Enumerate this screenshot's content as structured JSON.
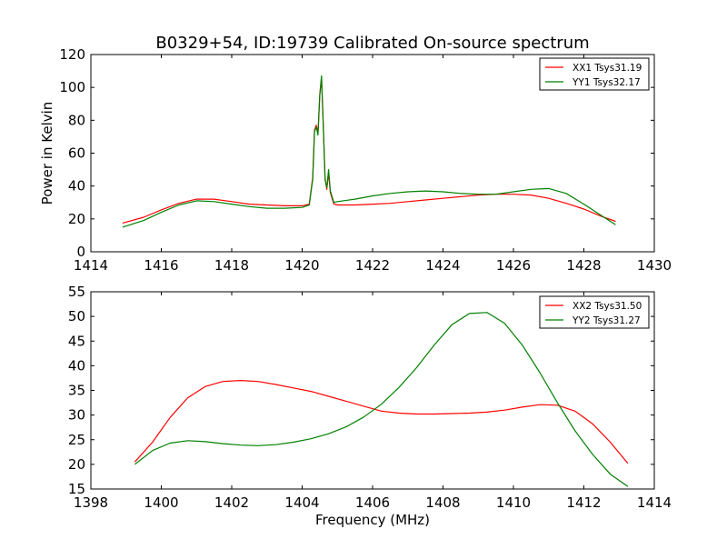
{
  "title": "B0329+54, ID:19739 Calibrated On-source spectrum",
  "chart_data": [
    {
      "type": "line",
      "title": "B0329+54, ID:19739 Calibrated On-source spectrum",
      "xlabel": "",
      "ylabel": "Power in Kelvin",
      "xlim": [
        1414,
        1430
      ],
      "ylim": [
        0,
        120
      ],
      "xticks": [
        "1414",
        "1416",
        "1418",
        "1420",
        "1422",
        "1424",
        "1426",
        "1428",
        "1430"
      ],
      "yticks": [
        "0",
        "20",
        "40",
        "60",
        "80",
        "100",
        "120"
      ],
      "grid": false,
      "legend_position": "top-right",
      "series": [
        {
          "name": "XX1 Tsys31.19",
          "color": "#ff0000",
          "x": [
            1414.9,
            1415.5,
            1416.0,
            1416.5,
            1417.0,
            1417.5,
            1418.0,
            1418.5,
            1419.0,
            1419.5,
            1420.0,
            1420.2,
            1420.3,
            1420.35,
            1420.4,
            1420.45,
            1420.5,
            1420.55,
            1420.6,
            1420.65,
            1420.7,
            1420.75,
            1420.8,
            1420.9,
            1421.0,
            1421.5,
            1422.0,
            1422.5,
            1423.0,
            1423.5,
            1424.0,
            1424.5,
            1425.0,
            1425.5,
            1426.0,
            1426.5,
            1427.0,
            1427.5,
            1428.0,
            1428.5,
            1428.9
          ],
          "y": [
            17.5,
            21,
            25.5,
            29.5,
            32,
            32,
            30.5,
            29,
            28.5,
            28,
            28,
            29,
            45,
            74,
            77,
            72,
            96,
            106,
            78,
            45,
            38,
            48,
            36,
            29,
            28.5,
            28.5,
            29,
            29.5,
            30.5,
            31.5,
            32.5,
            33.5,
            34.5,
            35,
            35,
            34.5,
            32.5,
            29.5,
            26,
            21.5,
            18.5
          ]
        },
        {
          "name": "YY1 Tsys32.17",
          "color": "#008000",
          "x": [
            1414.9,
            1415.5,
            1416.0,
            1416.5,
            1417.0,
            1417.5,
            1418.0,
            1418.5,
            1419.0,
            1419.5,
            1420.0,
            1420.2,
            1420.3,
            1420.35,
            1420.4,
            1420.45,
            1420.5,
            1420.55,
            1420.6,
            1420.65,
            1420.7,
            1420.75,
            1420.8,
            1420.9,
            1421.0,
            1421.5,
            1422.0,
            1422.5,
            1423.0,
            1423.5,
            1424.0,
            1424.5,
            1425.0,
            1425.5,
            1426.0,
            1426.5,
            1427.0,
            1427.5,
            1428.0,
            1428.5,
            1428.9
          ],
          "y": [
            15,
            19,
            24,
            28.5,
            31,
            30.5,
            29,
            27.5,
            26.5,
            26.5,
            27,
            28.5,
            44,
            73,
            76,
            71,
            95,
            107,
            77,
            44,
            39,
            50,
            37,
            30,
            30.5,
            32,
            34,
            35.5,
            36.5,
            37,
            36.5,
            35.5,
            35,
            35,
            36.5,
            38,
            38.5,
            35.5,
            29,
            22,
            16.5
          ]
        }
      ]
    },
    {
      "type": "line",
      "title": "",
      "xlabel": "Frequency (MHz)",
      "ylabel": "",
      "xlim": [
        1398,
        1414
      ],
      "ylim": [
        15,
        55
      ],
      "xticks": [
        "1398",
        "1400",
        "1402",
        "1404",
        "1406",
        "1408",
        "1410",
        "1412",
        "1414"
      ],
      "yticks": [
        "15",
        "20",
        "25",
        "30",
        "35",
        "40",
        "45",
        "50",
        "55"
      ],
      "grid": false,
      "legend_position": "top-right",
      "series": [
        {
          "name": "XX2 Tsys31.50",
          "color": "#ff0000",
          "x": [
            1399.25,
            1399.75,
            1400.25,
            1400.75,
            1401.25,
            1401.75,
            1402.25,
            1402.75,
            1403.25,
            1403.75,
            1404.25,
            1404.75,
            1405.25,
            1405.75,
            1406.25,
            1406.75,
            1407.25,
            1407.75,
            1408.25,
            1408.75,
            1409.25,
            1409.75,
            1410.25,
            1410.75,
            1411.25,
            1411.75,
            1412.25,
            1412.75,
            1413.25
          ],
          "y": [
            20.5,
            24.5,
            29.5,
            33.5,
            35.8,
            36.8,
            37,
            36.8,
            36.2,
            35.5,
            34.8,
            33.8,
            32.8,
            31.8,
            30.8,
            30.4,
            30.2,
            30.2,
            30.3,
            30.4,
            30.6,
            31.0,
            31.6,
            32.1,
            32.0,
            30.8,
            28.2,
            24.5,
            20.2
          ]
        },
        {
          "name": "YY2 Tsys31.27",
          "color": "#008000",
          "x": [
            1399.25,
            1399.75,
            1400.25,
            1400.75,
            1401.25,
            1401.75,
            1402.25,
            1402.75,
            1403.25,
            1403.75,
            1404.25,
            1404.75,
            1405.25,
            1405.75,
            1406.25,
            1406.75,
            1407.25,
            1407.75,
            1408.25,
            1408.75,
            1409.25,
            1409.75,
            1410.25,
            1410.75,
            1411.25,
            1411.75,
            1412.25,
            1412.75,
            1413.25
          ],
          "y": [
            20,
            22.8,
            24.3,
            24.8,
            24.6,
            24.2,
            23.9,
            23.8,
            24.0,
            24.5,
            25.2,
            26.2,
            27.6,
            29.6,
            32.2,
            35.6,
            39.6,
            44.2,
            48.3,
            50.6,
            50.8,
            48.6,
            44.2,
            38.6,
            32.5,
            26.8,
            22.0,
            18.0,
            15.5
          ]
        }
      ]
    }
  ]
}
